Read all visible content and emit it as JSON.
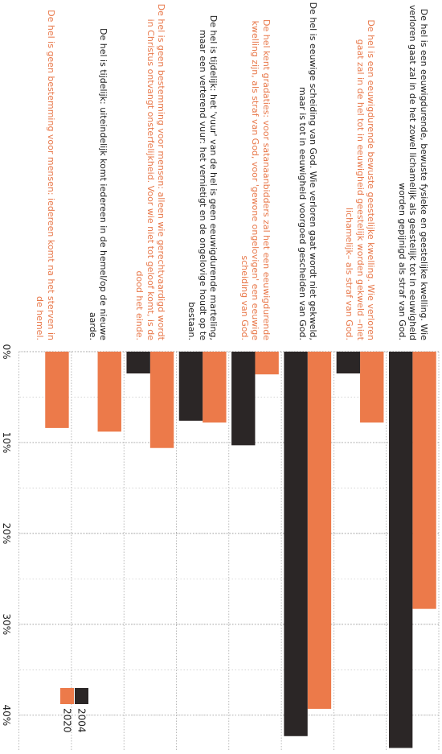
{
  "chart_data": {
    "type": "bar",
    "orientation": "horizontal",
    "categories": [
      "De hel is een eeuwigdurende, bewuste fysieke en geestelijke kwelling. Wie verloren gaat zal in de het zowel lichamelijk als geestelijk tot in eeuwigheid worden gepijnigd als straf van God.",
      "De hel is een eeuwigdurende bewuste geestelijke kwelling. Wie verloren gaat zal in de hel tot in eeuwigheid geestelijk worden gekweld –niet lichamelijk– als straf van God.",
      "De hel is eeuwige scheiding van God. Wie verloren gaat wordt niet gekweld, maar is tot in eeuwigheid voorgoed gescheiden van God.",
      "De hel kent gradaties: voor satanaanbidders zal het een eeuwigdurende kwelling zijn, als straf van God, voor 'gewone ongelovigen' een eeuwige scheiding van God.",
      "De hel is tijdelijk: het 'vuur' van de hel is geen eeuwigdurende marteling, maar een verterend vuur: het vernietigt en de ongelovige houdt op te bestaan.",
      "De hel is geen bestemming voor mensen: alleen wie gerechtvaardigd wordt in Christus ontvangt onsterfelijkheid. Voor wie niet tot geloof komt, is de dood het einde.",
      "De hel is tijdelijk: uiteindelijk komt iedereen in de hemel/op de nieuwe aarde.",
      "De hel is geen bestemming voor mensen: iedereen komt na het sterven in de hemel."
    ],
    "series": [
      {
        "name": "2004",
        "color": "#2b2626",
        "values": [
          43.6,
          2.4,
          42.3,
          10.3,
          7.6,
          2.4,
          null,
          null
        ]
      },
      {
        "name": "2020",
        "color": "#ec7a4a",
        "values": [
          28.3,
          7.8,
          39.3,
          2.5,
          7.8,
          10.6,
          8.8,
          8.4
        ]
      }
    ],
    "ylim": [
      0,
      44
    ],
    "yticks": [
      {
        "value": 0,
        "label": "0%"
      },
      {
        "value": 10,
        "label": "10%"
      },
      {
        "value": 20,
        "label": "20%"
      },
      {
        "value": 30,
        "label": "30%"
      },
      {
        "value": 40,
        "label": "40%"
      }
    ],
    "grid": true
  }
}
